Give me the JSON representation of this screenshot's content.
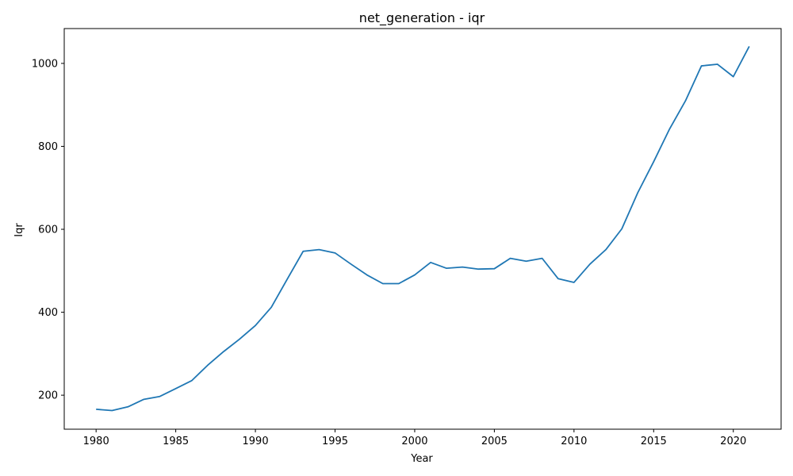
{
  "colors": {
    "line": "#1f77b4",
    "axis": "#000000",
    "background": "#ffffff"
  },
  "chart_data": {
    "type": "line",
    "title": "net_generation - iqr",
    "xlabel": "Year",
    "ylabel": "Iqr",
    "xlim": [
      1978,
      2023
    ],
    "ylim": [
      118,
      1084
    ],
    "grid": false,
    "x_ticks": [
      1980,
      1985,
      1990,
      1995,
      2000,
      2005,
      2010,
      2015,
      2020
    ],
    "y_ticks": [
      200,
      400,
      600,
      800,
      1000
    ],
    "series": [
      {
        "x": [
          1980,
          1981,
          1982,
          1983,
          1984,
          1985,
          1986,
          1987,
          1988,
          1989,
          1990,
          1991,
          1992,
          1993,
          1994,
          1995,
          1996,
          1997,
          1998,
          1999,
          2000,
          2001,
          2002,
          2003,
          2004,
          2005,
          2006,
          2007,
          2008,
          2009,
          2010,
          2011,
          2012,
          2013,
          2014,
          2015,
          2016,
          2017,
          2018,
          2019,
          2020,
          2021
        ],
        "values": [
          166,
          163,
          172,
          190,
          197,
          216,
          235,
          272,
          305,
          335,
          368,
          412,
          480,
          547,
          551,
          543,
          516,
          490,
          469,
          469,
          490,
          520,
          506,
          509,
          504,
          505,
          530,
          523,
          530,
          481,
          472,
          516,
          551,
          601,
          688,
          763,
          842,
          910,
          994,
          998,
          968,
          1041
        ]
      }
    ]
  }
}
